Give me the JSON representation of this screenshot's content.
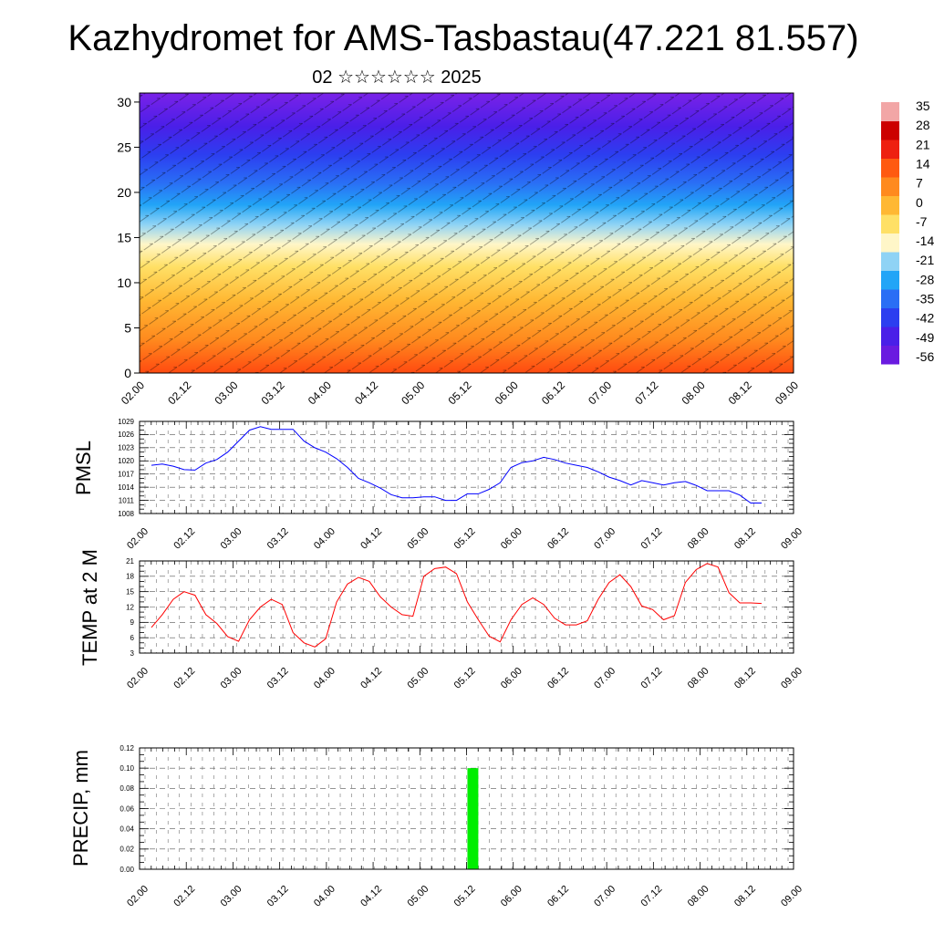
{
  "header": {
    "title": "Kazhydromet for AMS-Tasbastau(47.221 81.557)",
    "subtitle": "02 ☆☆☆☆☆☆ 2025"
  },
  "time_ticks": [
    "02.00",
    "02.12",
    "03.00",
    "03.12",
    "04.00",
    "04.12",
    "05.00",
    "05.12",
    "06.00",
    "06.12",
    "07.00",
    "07.12",
    "08.00",
    "08.12",
    "09.00"
  ],
  "colors": {
    "pmsl_line": "#0000ff",
    "temp_line": "#ff0000",
    "precip_bar": "#00ee00",
    "colorbar": [
      "#6a1be0",
      "#4a1fe8",
      "#2c3ef0",
      "#2a6ef5",
      "#22a5f7",
      "#8fd3f5",
      "#fff6c8",
      "#ffe066",
      "#ffb833",
      "#ff8a1e",
      "#ff5a10",
      "#ee2010",
      "#cc0000",
      "#f2a6a6"
    ]
  },
  "chart_data": [
    {
      "type": "heatmap",
      "description_source": "vertical cross-section of temperature with wind vectors",
      "ylim": [
        0,
        31
      ],
      "yticks": [
        0,
        5,
        10,
        15,
        20,
        25,
        30
      ],
      "xticks": [
        "02.00",
        "02.12",
        "03.00",
        "03.12",
        "04.00",
        "04.12",
        "05.00",
        "05.12",
        "06.00",
        "06.12",
        "07.00",
        "07.12",
        "08.00",
        "08.12",
        "09.00"
      ],
      "colorbar_labels": [
        "35",
        "28",
        "21",
        "14",
        "7",
        "0",
        "-7",
        "-14",
        "-21",
        "-28",
        "-35",
        "-42",
        "-49",
        "-56"
      ]
    },
    {
      "type": "line",
      "ylabel": "PMSL",
      "ylim": [
        1008,
        1029
      ],
      "yticks": [
        1008,
        1011,
        1014,
        1017,
        1020,
        1023,
        1026,
        1029
      ],
      "xticks": [
        "02.00",
        "02.12",
        "03.00",
        "03.12",
        "04.00",
        "04.12",
        "05.00",
        "05.12",
        "06.00",
        "06.12",
        "07.00",
        "07.12",
        "08.00",
        "08.12",
        "09.00"
      ],
      "x": [
        0,
        3,
        6,
        9,
        12,
        15,
        18,
        21,
        24,
        27,
        30,
        33,
        36,
        39,
        42,
        45,
        48,
        51,
        54,
        57,
        60,
        63,
        66,
        69,
        72,
        75,
        78,
        81,
        84,
        87,
        90,
        93,
        96,
        99,
        102,
        105,
        108,
        111,
        114,
        117,
        120,
        123,
        126,
        129,
        132,
        135,
        138,
        141,
        144,
        147,
        150,
        153,
        156,
        159,
        162,
        165,
        168
      ],
      "values": [
        1019,
        1019.3,
        1018.8,
        1018,
        1017.9,
        1019.5,
        1020.3,
        1022,
        1024.5,
        1027,
        1027.8,
        1027.2,
        1027.2,
        1027.2,
        1024.5,
        1023,
        1022,
        1020.5,
        1018.5,
        1016,
        1015,
        1013.8,
        1012.3,
        1011.6,
        1011.6,
        1011.8,
        1011.8,
        1011,
        1011,
        1012.5,
        1012.5,
        1013.5,
        1015,
        1018.5,
        1019.6,
        1020,
        1020.8,
        1020.3,
        1019.5,
        1019,
        1018.5,
        1017.5,
        1016.3,
        1015.5,
        1014.5,
        1015.5,
        1015,
        1014.5,
        1015,
        1015.3,
        1014.4,
        1013.2,
        1013.2,
        1013.2,
        1012.2,
        1010.4,
        1010.4
      ]
    },
    {
      "type": "line",
      "ylabel": "TEMP at 2 M",
      "ylim": [
        3,
        21
      ],
      "yticks": [
        3,
        6,
        9,
        12,
        15,
        18,
        21
      ],
      "xticks": [
        "02.00",
        "02.12",
        "03.00",
        "03.12",
        "04.00",
        "04.12",
        "05.00",
        "05.12",
        "06.00",
        "06.12",
        "07.00",
        "07.12",
        "08.00",
        "08.12",
        "09.00"
      ],
      "x": [
        0,
        3,
        6,
        9,
        12,
        15,
        18,
        21,
        24,
        27,
        30,
        33,
        36,
        39,
        42,
        45,
        48,
        51,
        54,
        57,
        60,
        63,
        66,
        69,
        72,
        75,
        78,
        81,
        84,
        87,
        90,
        93,
        96,
        99,
        102,
        105,
        108,
        111,
        114,
        117,
        120,
        123,
        126,
        129,
        132,
        135,
        138,
        141,
        144,
        147,
        150,
        153,
        156,
        159,
        162,
        165,
        168
      ],
      "values": [
        8,
        10.5,
        13.5,
        15,
        14.3,
        10.5,
        8.8,
        6.2,
        5.3,
        9.5,
        12,
        13.5,
        12.5,
        7,
        5,
        4.2,
        5.8,
        13,
        16.5,
        17.8,
        17,
        14,
        12,
        10.5,
        10.2,
        18,
        19.5,
        19.8,
        18.5,
        13,
        9.5,
        6.3,
        5.2,
        9.5,
        12.5,
        13.8,
        12.5,
        9.8,
        8.5,
        8.5,
        9.3,
        13.5,
        16.8,
        18.3,
        16,
        12.2,
        11.5,
        9.5,
        10.3,
        16.8,
        19.3,
        20.5,
        19.8,
        14.8,
        12.8,
        12.8,
        12.7
      ]
    },
    {
      "type": "bar",
      "ylabel": "PRECIP, mm",
      "ylim": [
        0,
        0.12
      ],
      "yticks": [
        "0.00",
        "0.02",
        "0.04",
        "0.06",
        "0.08",
        "0.10",
        "0.12"
      ],
      "xticks": [
        "02.00",
        "02.12",
        "03.00",
        "03.12",
        "04.00",
        "04.12",
        "05.00",
        "05.12",
        "06.00",
        "06.12",
        "07.00",
        "07.12",
        "08.00",
        "08.12",
        "09.00"
      ],
      "bars": [
        {
          "x_start": 87,
          "x_end": 90,
          "value": 0.1
        }
      ]
    }
  ]
}
